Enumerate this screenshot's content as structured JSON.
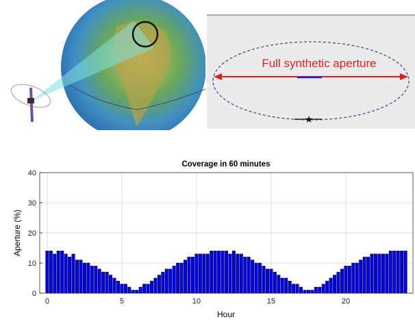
{
  "illustration": {
    "label": "Full synthetic aperture"
  },
  "chart_data": {
    "type": "bar",
    "title": "Coverage in 60 minutes",
    "x_label": "Hour",
    "y_label": "Aperture (%)",
    "x": [
      0,
      0.25,
      0.5,
      0.75,
      1,
      1.25,
      1.5,
      1.75,
      2,
      2.25,
      2.5,
      2.75,
      3,
      3.25,
      3.5,
      3.75,
      4,
      4.25,
      4.5,
      4.75,
      5,
      5.25,
      5.5,
      5.75,
      6,
      6.25,
      6.5,
      6.75,
      7,
      7.25,
      7.5,
      7.75,
      8,
      8.25,
      8.5,
      8.75,
      9,
      9.25,
      9.5,
      9.75,
      10,
      10.25,
      10.5,
      10.75,
      11,
      11.25,
      11.5,
      11.75,
      12,
      12.25,
      12.5,
      12.75,
      13,
      13.25,
      13.5,
      13.75,
      14,
      14.25,
      14.5,
      14.75,
      15,
      15.25,
      15.5,
      15.75,
      16,
      16.25,
      16.5,
      16.75,
      17,
      17.25,
      17.5,
      17.75,
      18,
      18.25,
      18.5,
      18.75,
      19,
      19.25,
      19.5,
      19.75,
      20,
      20.25,
      20.5,
      20.75,
      21,
      21.25,
      21.5,
      21.75,
      22,
      22.25,
      22.5,
      22.75,
      23,
      23.25,
      23.5,
      23.75,
      24
    ],
    "values": [
      14,
      14,
      13,
      14,
      14,
      13,
      12,
      13,
      11,
      11,
      10,
      10,
      9,
      9,
      8,
      7,
      7,
      6,
      5,
      4,
      3,
      3,
      2,
      1,
      1,
      2,
      3,
      3,
      4,
      5,
      6,
      7,
      8,
      8,
      9,
      10,
      10,
      11,
      12,
      12,
      13,
      13,
      13,
      13,
      14,
      14,
      14,
      14,
      14,
      13,
      14,
      13,
      13,
      12,
      12,
      11,
      10,
      10,
      9,
      8,
      8,
      7,
      6,
      5,
      5,
      4,
      3,
      3,
      2,
      1,
      1,
      1,
      2,
      2,
      3,
      4,
      5,
      6,
      7,
      8,
      9,
      9,
      10,
      10,
      11,
      12,
      12,
      13,
      13,
      13,
      13,
      13,
      14,
      14,
      14,
      14,
      14
    ],
    "color": "#0000ff",
    "xlim": [
      -0.5,
      24.5
    ],
    "ylim": [
      0,
      40
    ],
    "xticks": [
      0,
      5,
      10,
      15,
      20
    ],
    "yticks": [
      0,
      10,
      20,
      30,
      40
    ],
    "grid": true
  }
}
